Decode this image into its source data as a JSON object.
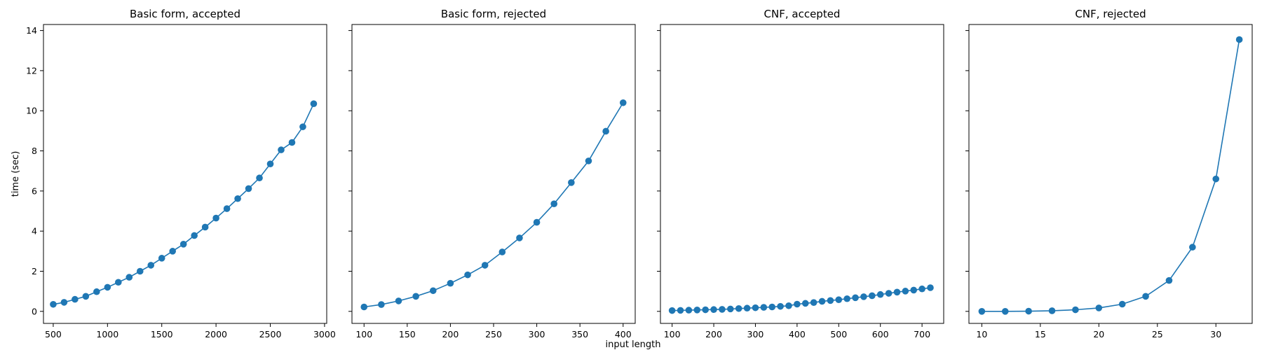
{
  "figure": {
    "ylabel": "time (sec)",
    "xlabel": "input length",
    "series_color": "#1f77b4"
  },
  "chart_data": [
    {
      "type": "line",
      "title": "Basic form, accepted",
      "xlim": [
        410,
        3020
      ],
      "ylim": [
        -0.6,
        14.3
      ],
      "xticks": [
        500,
        1000,
        1500,
        2000,
        2500,
        3000
      ],
      "yticks": [
        0,
        2,
        4,
        6,
        8,
        10,
        12,
        14
      ],
      "x": [
        500,
        600,
        700,
        800,
        900,
        1000,
        1100,
        1200,
        1300,
        1400,
        1500,
        1600,
        1700,
        1800,
        1900,
        2000,
        2100,
        2200,
        2300,
        2400,
        2500,
        2600,
        2700,
        2800,
        2900
      ],
      "y": [
        0.35,
        0.45,
        0.6,
        0.75,
        0.98,
        1.2,
        1.45,
        1.7,
        2.0,
        2.3,
        2.65,
        3.0,
        3.35,
        3.78,
        4.2,
        4.65,
        5.12,
        5.62,
        6.12,
        6.65,
        7.35,
        8.05,
        8.42,
        9.2,
        10.35
      ]
    },
    {
      "type": "line",
      "title": "Basic form, rejected",
      "xlim": [
        86,
        414
      ],
      "ylim": [
        -0.6,
        14.3
      ],
      "xticks": [
        100,
        150,
        200,
        250,
        300,
        350,
        400
      ],
      "yticks": [
        0,
        2,
        4,
        6,
        8,
        10,
        12,
        14
      ],
      "x": [
        100,
        120,
        140,
        160,
        180,
        200,
        220,
        240,
        260,
        280,
        300,
        320,
        340,
        360,
        380,
        400
      ],
      "y": [
        0.22,
        0.34,
        0.52,
        0.75,
        1.03,
        1.4,
        1.82,
        2.3,
        2.96,
        3.66,
        4.44,
        5.36,
        6.42,
        7.5,
        8.98,
        10.4
      ]
    },
    {
      "type": "line",
      "title": "CNF, accepted",
      "xlim": [
        72,
        752
      ],
      "ylim": [
        -0.6,
        14.3
      ],
      "xticks": [
        100,
        200,
        300,
        400,
        500,
        600,
        700
      ],
      "yticks": [
        0,
        2,
        4,
        6,
        8,
        10,
        12,
        14
      ],
      "x": [
        100,
        120,
        140,
        160,
        180,
        200,
        220,
        240,
        260,
        280,
        300,
        320,
        340,
        360,
        380,
        400,
        420,
        440,
        460,
        480,
        500,
        520,
        540,
        560,
        580,
        600,
        620,
        640,
        660,
        680,
        700,
        720
      ],
      "y": [
        0.04,
        0.05,
        0.06,
        0.07,
        0.08,
        0.09,
        0.1,
        0.12,
        0.14,
        0.16,
        0.18,
        0.2,
        0.22,
        0.25,
        0.28,
        0.36,
        0.4,
        0.44,
        0.5,
        0.54,
        0.58,
        0.63,
        0.68,
        0.73,
        0.78,
        0.84,
        0.9,
        0.96,
        1.01,
        1.06,
        1.12,
        1.18
      ]
    },
    {
      "type": "line",
      "title": "CNF, rejected",
      "xlim": [
        8.9,
        33.1
      ],
      "ylim": [
        -0.6,
        14.3
      ],
      "xticks": [
        10,
        15,
        20,
        25,
        30
      ],
      "yticks": [
        0,
        2,
        4,
        6,
        8,
        10,
        12,
        14
      ],
      "x": [
        10,
        12,
        14,
        16,
        18,
        20,
        22,
        24,
        26,
        28,
        30,
        32
      ],
      "y": [
        0.0,
        0.0,
        0.01,
        0.03,
        0.08,
        0.17,
        0.36,
        0.75,
        1.54,
        3.2,
        6.6,
        13.55
      ]
    }
  ]
}
